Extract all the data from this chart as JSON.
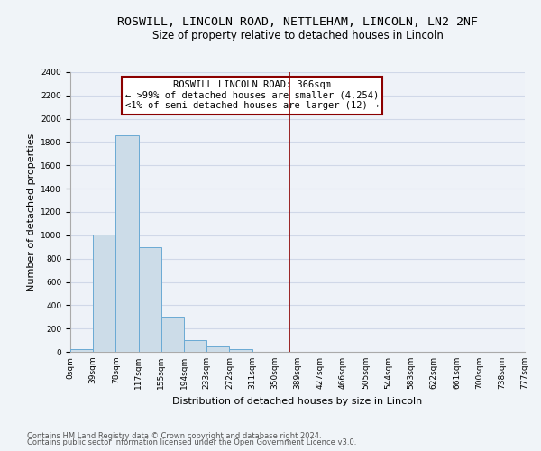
{
  "title": "ROSWILL, LINCOLN ROAD, NETTLEHAM, LINCOLN, LN2 2NF",
  "subtitle": "Size of property relative to detached houses in Lincoln",
  "xlabel": "Distribution of detached houses by size in Lincoln",
  "ylabel": "Number of detached properties",
  "bin_labels": [
    "0sqm",
    "39sqm",
    "78sqm",
    "117sqm",
    "155sqm",
    "194sqm",
    "233sqm",
    "272sqm",
    "311sqm",
    "350sqm",
    "389sqm",
    "427sqm",
    "466sqm",
    "505sqm",
    "544sqm",
    "583sqm",
    "622sqm",
    "661sqm",
    "700sqm",
    "738sqm",
    "777sqm"
  ],
  "bar_values": [
    20,
    1010,
    1860,
    900,
    300,
    100,
    45,
    20,
    0,
    0,
    0,
    0,
    0,
    0,
    0,
    0,
    0,
    0,
    0,
    0
  ],
  "bar_color": "#ccdce8",
  "bar_edge_color": "#6aaad4",
  "ylim": [
    0,
    2400
  ],
  "yticks": [
    0,
    200,
    400,
    600,
    800,
    1000,
    1200,
    1400,
    1600,
    1800,
    2000,
    2200,
    2400
  ],
  "vline_x": 9.65,
  "vline_color": "#8b0000",
  "annotation_title": "ROSWILL LINCOLN ROAD: 366sqm",
  "annotation_line1": "← >99% of detached houses are smaller (4,254)",
  "annotation_line2": "<1% of semi-detached houses are larger (12) →",
  "footer_line1": "Contains HM Land Registry data © Crown copyright and database right 2024.",
  "footer_line2": "Contains public sector information licensed under the Open Government Licence v3.0.",
  "bg_color": "#f0f4f8",
  "plot_bg_color": "#eef2f8",
  "grid_color": "#d0d8e8",
  "title_fontsize": 9.5,
  "subtitle_fontsize": 8.5,
  "axis_label_fontsize": 8,
  "tick_fontsize": 6.5,
  "annotation_fontsize": 7.5,
  "footer_fontsize": 6
}
